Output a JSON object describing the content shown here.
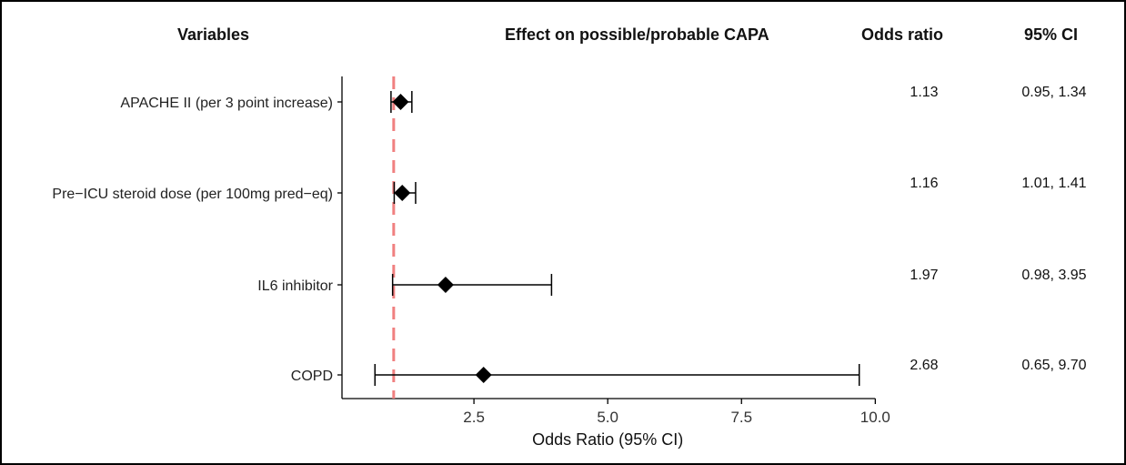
{
  "headers": {
    "variables": "Variables",
    "effect": "Effect on possible/probable CAPA",
    "odds_ratio": "Odds ratio",
    "ci": "95% CI"
  },
  "colors": {
    "reference_line": "#f08080",
    "marker": "#000000"
  },
  "chart_data": {
    "type": "forest",
    "xlabel": "Odds Ratio (95% CI)",
    "ylabel": "",
    "xlim": [
      0,
      10.3
    ],
    "xticks": [
      2.5,
      5.0,
      7.5,
      10.0
    ],
    "xtick_labels": [
      "2.5",
      "5.0",
      "7.5",
      "10.0"
    ],
    "reference_line": 1.0,
    "grid": false,
    "rows": [
      {
        "label": "APACHE II (per 3 point increase)",
        "or": 1.13,
        "lo": 0.95,
        "hi": 1.34,
        "or_text": "1.13",
        "ci_text": "0.95, 1.34"
      },
      {
        "label": "Pre−ICU steroid dose (per 100mg pred−eq)",
        "or": 1.16,
        "lo": 1.01,
        "hi": 1.41,
        "or_text": "1.16",
        "ci_text": "1.01, 1.41"
      },
      {
        "label": "IL6 inhibitor",
        "or": 1.97,
        "lo": 0.98,
        "hi": 3.95,
        "or_text": "1.97",
        "ci_text": "0.98, 3.95"
      },
      {
        "label": "COPD",
        "or": 2.68,
        "lo": 0.65,
        "hi": 9.7,
        "or_text": "2.68",
        "ci_text": "0.65, 9.70"
      }
    ]
  }
}
